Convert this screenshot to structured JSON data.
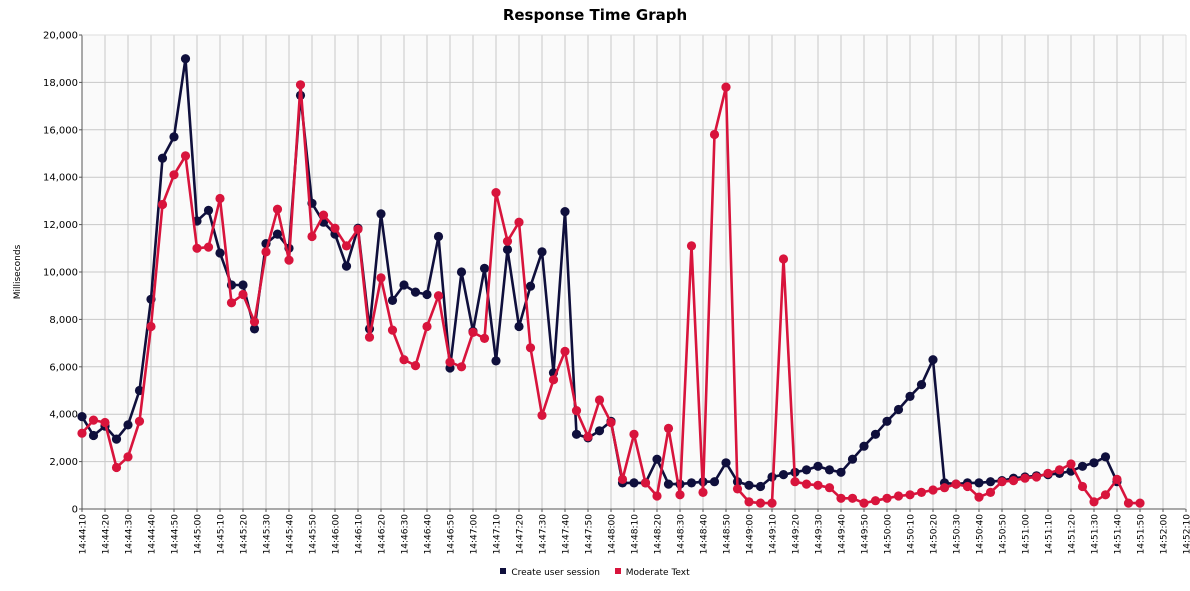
{
  "chart_data": {
    "type": "line",
    "title": "Response Time Graph",
    "xlabel": "",
    "ylabel": "Milliseconds",
    "ylim": [
      0,
      20000
    ],
    "yticks": [
      "0",
      "2,000",
      "4,000",
      "6,000",
      "8,000",
      "10,000",
      "12,000",
      "14,000",
      "16,000",
      "18,000",
      "20,000"
    ],
    "xlim": [
      "14:44:10",
      "14:52:10"
    ],
    "xticks": [
      "14:44:10",
      "14:44:20",
      "14:44:30",
      "14:44:40",
      "14:44:50",
      "14:45:00",
      "14:45:10",
      "14:45:20",
      "14:45:30",
      "14:45:40",
      "14:45:50",
      "14:46:00",
      "14:46:10",
      "14:46:20",
      "14:46:30",
      "14:46:40",
      "14:46:50",
      "14:47:00",
      "14:47:10",
      "14:47:20",
      "14:47:30",
      "14:47:40",
      "14:47:50",
      "14:48:00",
      "14:48:10",
      "14:48:20",
      "14:48:30",
      "14:48:40",
      "14:48:50",
      "14:49:00",
      "14:49:10",
      "14:49:20",
      "14:49:30",
      "14:49:40",
      "14:49:50",
      "14:50:00",
      "14:50:10",
      "14:50:20",
      "14:50:30",
      "14:50:40",
      "14:50:50",
      "14:51:00",
      "14:51:10",
      "14:51:20",
      "14:51:30",
      "14:51:40",
      "14:51:50",
      "14:52:00",
      "14:52:10"
    ],
    "grid": true,
    "legend_position": "bottom",
    "series": [
      {
        "name": "Create user session",
        "color": "#0f0f3c",
        "x_start": "14:44:10",
        "x_step_seconds": 5,
        "values": [
          3900,
          3100,
          3500,
          2950,
          3550,
          5000,
          8850,
          14800,
          15700,
          19000,
          12150,
          12600,
          10800,
          9450,
          9450,
          7600,
          11200,
          11600,
          11000,
          17450,
          12900,
          12100,
          11600,
          10250,
          11850,
          7600,
          12450,
          8800,
          9450,
          9150,
          9050,
          11500,
          5950,
          10000,
          7500,
          10150,
          6250,
          10950,
          7700,
          9400,
          10850,
          5750,
          12550,
          3150,
          3000,
          3300,
          3700,
          1100,
          1100,
          1100,
          2100,
          1050,
          1050,
          1100,
          1150,
          1150,
          1950,
          1150,
          1000,
          950,
          1350,
          1450,
          1550,
          1650,
          1800,
          1650,
          1550,
          2100,
          2650,
          3150,
          3700,
          4200,
          4750,
          5250,
          6300,
          1100,
          1050,
          1100,
          1100,
          1150,
          1200,
          1300,
          1350,
          1400,
          1450,
          1500,
          1600,
          1800,
          1950,
          2200,
          1150
        ]
      },
      {
        "name": "Moderate Text",
        "color": "#d8143c",
        "x_start": "14:44:10",
        "x_step_seconds": 5,
        "values": [
          3200,
          3750,
          3650,
          1750,
          2200,
          3700,
          7700,
          12850,
          14100,
          14900,
          11000,
          11050,
          13100,
          8700,
          9050,
          7900,
          10850,
          12650,
          10500,
          17900,
          11500,
          12400,
          11850,
          11100,
          11800,
          7250,
          9750,
          7550,
          6300,
          6050,
          7700,
          9000,
          6200,
          6000,
          7450,
          7200,
          13350,
          11300,
          12100,
          6800,
          3950,
          5450,
          6650,
          4150,
          3050,
          4600,
          3650,
          1250,
          3150,
          1100,
          550,
          3400,
          600,
          11100,
          700,
          15800,
          17800,
          850,
          300,
          250,
          250,
          10550,
          1150,
          1050,
          1000,
          900,
          450,
          450,
          250,
          350,
          450,
          550,
          600,
          700,
          800,
          900,
          1050,
          950,
          500,
          700,
          1150,
          1200,
          1300,
          1350,
          1500,
          1650,
          1900,
          950,
          300,
          600,
          1250,
          250,
          250
        ]
      }
    ]
  }
}
